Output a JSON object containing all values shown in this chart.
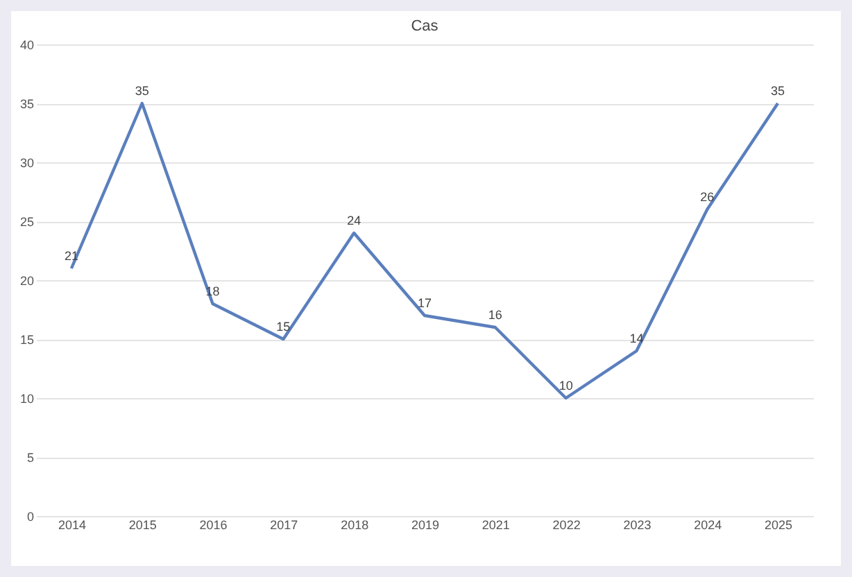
{
  "chart_data": {
    "type": "line",
    "title": "Cas",
    "categories": [
      "2014",
      "2015",
      "2016",
      "2017",
      "2018",
      "2019",
      "2021",
      "2022",
      "2023",
      "2024",
      "2025"
    ],
    "series": [
      {
        "color": "#5b7fbd",
        "values": [
          21,
          35,
          18,
          15,
          24,
          17,
          16,
          10,
          14,
          26,
          35
        ]
      }
    ],
    "ylim": [
      0,
      40
    ],
    "yticks": [
      0,
      5,
      10,
      15,
      20,
      25,
      30,
      35,
      40
    ],
    "grid": "y",
    "data_labels": true,
    "legend": false,
    "marker": "none"
  }
}
